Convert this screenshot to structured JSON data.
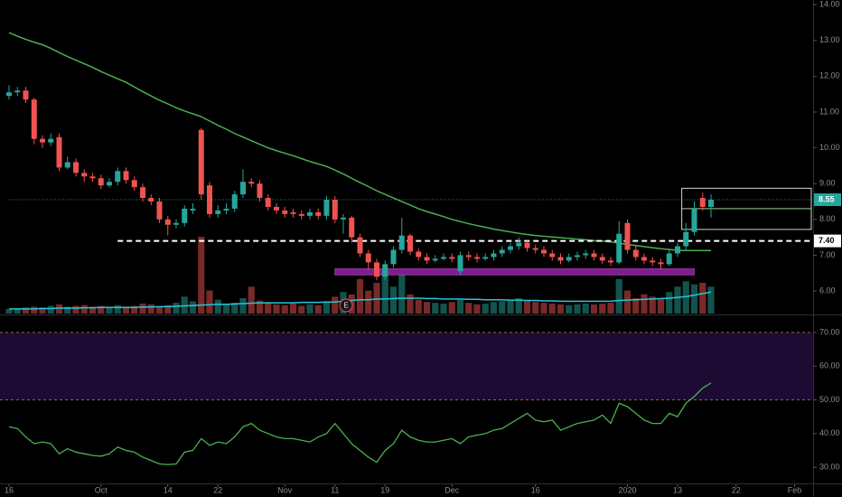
{
  "chart_data": {
    "type": "candlestick",
    "up_color": "#26a69a",
    "down_color": "#ef5350",
    "open": [
      11.45,
      11.55,
      11.6,
      11.35,
      10.25,
      10.15,
      10.3,
      9.45,
      9.6,
      9.3,
      9.2,
      9.15,
      8.95,
      9.05,
      9.35,
      9.1,
      8.9,
      8.6,
      8.5,
      8.0,
      7.85,
      7.9,
      8.25,
      10.5,
      8.95,
      8.15,
      8.25,
      8.3,
      8.7,
      9.05,
      9.0,
      8.6,
      8.35,
      8.25,
      8.2,
      8.15,
      8.1,
      8.2,
      8.1,
      8.55,
      8.0,
      8.05,
      7.5,
      7.05,
      6.8,
      6.4,
      6.75,
      7.15,
      7.55,
      7.1,
      6.95,
      6.85,
      6.9,
      6.95,
      6.55,
      7.0,
      6.95,
      6.9,
      6.95,
      7.05,
      7.15,
      7.25,
      7.35,
      7.2,
      7.15,
      7.05,
      6.95,
      6.85,
      6.95,
      7.0,
      7.05,
      6.95,
      6.85,
      6.8,
      7.9,
      7.15,
      6.95,
      6.85,
      6.8,
      6.75,
      7.05,
      7.25,
      7.65,
      8.6,
      8.35
    ],
    "high": [
      11.75,
      11.7,
      11.7,
      11.4,
      10.35,
      10.4,
      10.4,
      9.75,
      9.7,
      9.4,
      9.3,
      9.25,
      9.15,
      9.45,
      9.45,
      9.2,
      9.0,
      8.7,
      8.6,
      8.1,
      8.0,
      8.4,
      8.45,
      10.55,
      9.05,
      8.4,
      8.45,
      8.8,
      9.4,
      9.15,
      9.1,
      8.7,
      8.45,
      8.35,
      8.3,
      8.25,
      8.3,
      8.3,
      8.65,
      8.65,
      8.15,
      8.1,
      7.6,
      7.15,
      6.9,
      6.85,
      7.25,
      8.05,
      7.6,
      7.2,
      7.05,
      7.0,
      7.05,
      7.05,
      7.1,
      7.1,
      7.05,
      7.05,
      7.15,
      7.25,
      7.35,
      7.5,
      7.4,
      7.3,
      7.25,
      7.15,
      7.05,
      7.05,
      7.1,
      7.15,
      7.15,
      7.05,
      6.95,
      7.95,
      8.0,
      7.25,
      7.05,
      6.95,
      6.9,
      7.15,
      7.35,
      7.9,
      8.5,
      8.75,
      8.7
    ],
    "low": [
      11.35,
      11.45,
      11.25,
      10.1,
      10.0,
      10.05,
      9.35,
      9.4,
      9.2,
      9.05,
      9.05,
      8.85,
      8.9,
      8.95,
      9.0,
      8.8,
      8.5,
      8.4,
      7.9,
      7.55,
      7.75,
      7.8,
      8.15,
      8.55,
      8.05,
      8.05,
      8.15,
      8.2,
      8.6,
      8.9,
      8.5,
      8.25,
      8.15,
      8.05,
      8.05,
      8.0,
      8.0,
      8.0,
      8.0,
      7.9,
      7.6,
      7.35,
      6.95,
      6.6,
      6.3,
      6.3,
      6.65,
      7.05,
      7.0,
      6.85,
      6.75,
      6.8,
      6.85,
      6.8,
      6.45,
      6.85,
      6.8,
      6.85,
      6.85,
      6.95,
      7.05,
      7.15,
      7.1,
      7.05,
      6.95,
      6.85,
      6.75,
      6.8,
      6.85,
      6.9,
      6.85,
      6.75,
      6.7,
      6.75,
      7.05,
      6.85,
      6.75,
      6.7,
      6.6,
      6.7,
      6.95,
      7.15,
      7.55,
      8.25,
      8.05
    ],
    "close": [
      11.55,
      11.6,
      11.35,
      10.25,
      10.15,
      10.25,
      9.45,
      9.6,
      9.3,
      9.2,
      9.15,
      8.95,
      9.05,
      9.35,
      9.1,
      8.9,
      8.6,
      8.5,
      8.0,
      7.85,
      7.9,
      8.3,
      8.3,
      8.7,
      8.15,
      8.25,
      8.3,
      8.7,
      9.05,
      9.0,
      8.6,
      8.35,
      8.25,
      8.15,
      8.15,
      8.1,
      8.2,
      8.1,
      8.55,
      8.0,
      8.05,
      7.5,
      7.05,
      6.8,
      6.4,
      6.75,
      7.15,
      7.55,
      7.1,
      6.95,
      6.85,
      6.9,
      6.95,
      6.9,
      7.0,
      6.95,
      6.9,
      6.95,
      7.05,
      7.15,
      7.25,
      7.35,
      7.2,
      7.15,
      7.05,
      6.95,
      6.85,
      6.95,
      7.0,
      7.05,
      6.95,
      6.85,
      6.8,
      7.6,
      7.15,
      6.95,
      6.85,
      6.8,
      6.75,
      7.05,
      7.25,
      7.65,
      8.3,
      8.35,
      8.55
    ],
    "ylim": [
      5.37,
      14.13
    ],
    "yticks": [
      {
        "value": 6,
        "label": "6.00"
      },
      {
        "value": 7,
        "label": "7.00"
      },
      {
        "value": 8,
        "label": "8.00"
      },
      {
        "value": 9,
        "label": "9.00"
      },
      {
        "value": 10,
        "label": "10.00"
      },
      {
        "value": 11,
        "label": "11.00"
      },
      {
        "value": 12,
        "label": "12.00"
      },
      {
        "value": 13,
        "label": "13.00"
      },
      {
        "value": 14,
        "label": "14.00"
      }
    ],
    "xticks": [
      {
        "value": 0,
        "label": "16"
      },
      {
        "value": 11,
        "label": "Oct"
      },
      {
        "value": 19,
        "label": "14"
      },
      {
        "value": 25,
        "label": "22"
      },
      {
        "value": 33,
        "label": "Nov"
      },
      {
        "value": 39,
        "label": "11"
      },
      {
        "value": 45,
        "label": "19"
      },
      {
        "value": 53,
        "label": "Dec"
      },
      {
        "value": 63,
        "label": "16"
      },
      {
        "value": 74,
        "label": "2020"
      },
      {
        "value": 80,
        "label": "13"
      },
      {
        "value": 87,
        "label": "22"
      },
      {
        "value": 94,
        "label": "Feb"
      }
    ],
    "ma": {
      "color": "#4caf50",
      "values": [
        13.22,
        13.12,
        13.03,
        12.95,
        12.88,
        12.78,
        12.66,
        12.55,
        12.45,
        12.35,
        12.25,
        12.13,
        12.03,
        11.93,
        11.83,
        11.7,
        11.57,
        11.45,
        11.33,
        11.23,
        11.12,
        11.03,
        10.95,
        10.87,
        10.75,
        10.63,
        10.52,
        10.4,
        10.3,
        10.2,
        10.1,
        10.0,
        9.92,
        9.85,
        9.78,
        9.7,
        9.62,
        9.55,
        9.48,
        9.38,
        9.27,
        9.15,
        9.03,
        8.92,
        8.8,
        8.7,
        8.6,
        8.5,
        8.4,
        8.3,
        8.22,
        8.15,
        8.08,
        8.0,
        7.94,
        7.88,
        7.83,
        7.78,
        7.73,
        7.69,
        7.65,
        7.61,
        7.58,
        7.55,
        7.53,
        7.51,
        7.49,
        7.47,
        7.45,
        7.43,
        7.41,
        7.4,
        7.37,
        7.34,
        7.3,
        7.27,
        7.24,
        7.21,
        7.18,
        7.16,
        7.14,
        7.13,
        7.13,
        7.13,
        7.13
      ]
    },
    "volume": {
      "ylim": [
        0,
        120
      ],
      "ma_color": "#26c6da",
      "values": [
        6,
        7,
        8,
        9,
        8,
        10,
        12,
        9,
        10,
        11,
        9,
        10,
        8,
        11,
        9,
        10,
        13,
        12,
        9,
        11,
        14,
        22,
        16,
        100,
        30,
        18,
        12,
        14,
        20,
        35,
        17,
        14,
        12,
        11,
        13,
        10,
        12,
        11,
        16,
        22,
        28,
        25,
        45,
        30,
        40,
        55,
        35,
        50,
        25,
        18,
        15,
        14,
        13,
        15,
        18,
        14,
        12,
        13,
        15,
        16,
        17,
        20,
        18,
        15,
        14,
        13,
        12,
        11,
        12,
        13,
        12,
        13,
        14,
        45,
        30,
        20,
        25,
        22,
        20,
        28,
        35,
        42,
        38,
        40,
        35
      ],
      "ma_values": [
        6,
        6,
        6,
        6,
        6.5,
        6.5,
        7,
        7,
        7,
        7.5,
        7.5,
        8,
        8,
        8,
        8,
        8,
        8.5,
        8.5,
        9,
        9,
        9.5,
        10,
        10.5,
        11,
        11.5,
        12,
        12,
        12.5,
        13,
        13.5,
        14,
        14,
        14,
        14,
        14,
        14.5,
        14.5,
        14.5,
        15,
        15,
        16,
        17,
        18,
        18,
        19,
        19,
        19.5,
        20,
        20,
        20,
        19.5,
        19.5,
        19,
        19,
        19,
        18.5,
        18.5,
        18,
        18,
        18,
        17.5,
        17.5,
        17,
        17,
        16.5,
        16.5,
        16,
        16,
        16,
        16,
        16,
        16,
        16,
        17,
        17.5,
        18,
        18.5,
        19,
        19.5,
        20,
        21,
        22,
        24,
        26,
        28
      ]
    },
    "price_lines": [
      {
        "value": 7.4,
        "label": "7.40",
        "from": 13,
        "color": "#ffffff"
      },
      {
        "value": 8.55,
        "label": "8.55",
        "from": 0,
        "color": "#26a69a"
      }
    ],
    "zone": {
      "from": 39,
      "to": 82,
      "low": 6.45,
      "high": 6.62,
      "color": "#9c27b0"
    },
    "box": {
      "from": 80.5,
      "to": 96,
      "low": 7.72,
      "high": 8.87,
      "mid": 8.3
    },
    "earnings": {
      "index": 40,
      "label": "E"
    },
    "rsi": {
      "color": "#4caf50",
      "ylim": [
        25.2,
        74.8
      ],
      "band": [
        50,
        70
      ],
      "band_color": "#1e0b33",
      "yticks": [
        {
          "value": 30,
          "label": "30.00"
        },
        {
          "value": 40,
          "label": "40.00"
        },
        {
          "value": 50,
          "label": "50.00"
        },
        {
          "value": 60,
          "label": "60.00"
        },
        {
          "value": 70,
          "label": "70.00"
        }
      ],
      "values": [
        42,
        41.5,
        39,
        37,
        37.5,
        37,
        34,
        35.5,
        34.5,
        34,
        33.5,
        33.3,
        34,
        36,
        35,
        34.5,
        33,
        32,
        31,
        30.8,
        31,
        34.5,
        35,
        38.5,
        36.5,
        37.5,
        37,
        39,
        42,
        43,
        41,
        40,
        39,
        38.5,
        38.5,
        38,
        37.5,
        39,
        40,
        43,
        40,
        37,
        35,
        33,
        31.5,
        35,
        37,
        41,
        39,
        38,
        37.5,
        37.5,
        38,
        38.5,
        37,
        39,
        39.5,
        40,
        41,
        41.5,
        43,
        44.5,
        46,
        44,
        43.5,
        44,
        41,
        42,
        43,
        43.5,
        44,
        45.5,
        43,
        49,
        48,
        46,
        44,
        43,
        43,
        46,
        45,
        49,
        51,
        53.5,
        55
      ]
    }
  }
}
